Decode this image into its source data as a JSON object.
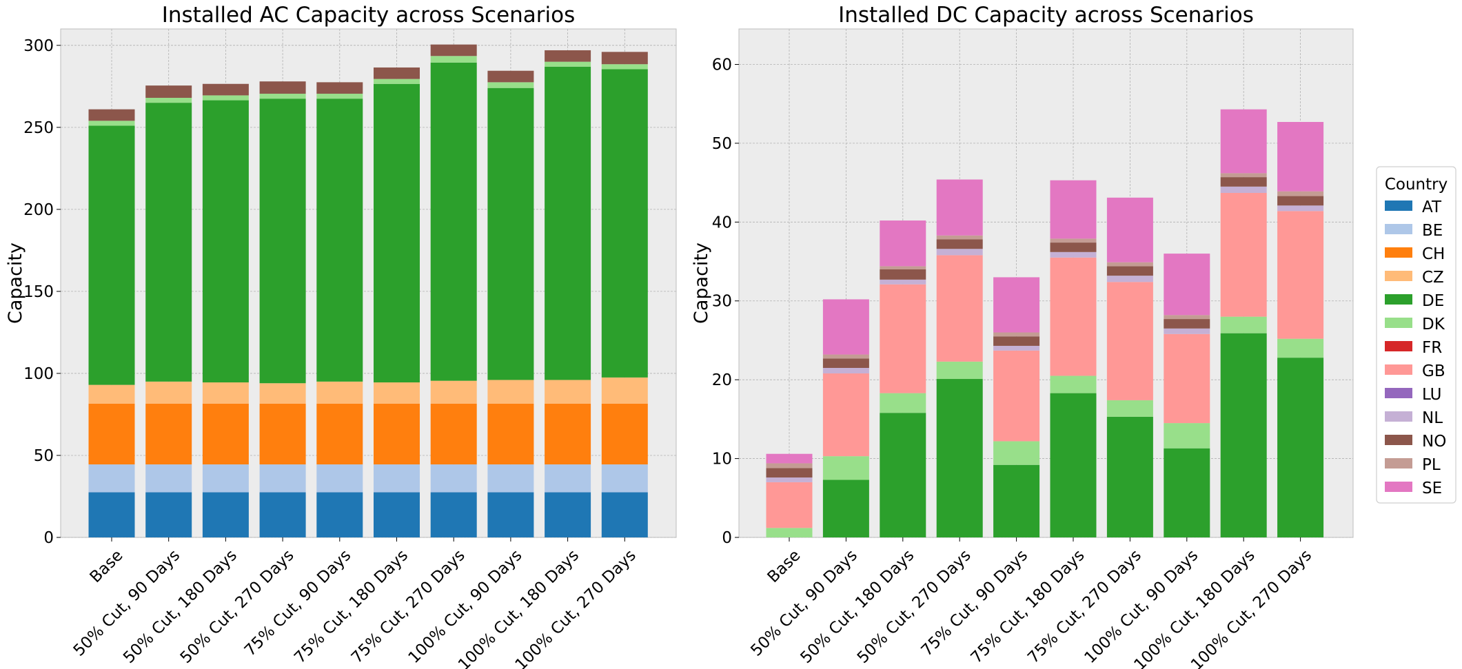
{
  "countries": [
    {
      "name": "AT",
      "color": "#1f77b4"
    },
    {
      "name": "BE",
      "color": "#aec7e8"
    },
    {
      "name": "CH",
      "color": "#ff7f0e"
    },
    {
      "name": "CZ",
      "color": "#ffbb78"
    },
    {
      "name": "DE",
      "color": "#2ca02c"
    },
    {
      "name": "DK",
      "color": "#98df8a"
    },
    {
      "name": "FR",
      "color": "#d62728"
    },
    {
      "name": "GB",
      "color": "#ff9896"
    },
    {
      "name": "LU",
      "color": "#9467bd"
    },
    {
      "name": "NL",
      "color": "#c5b0d5"
    },
    {
      "name": "NO",
      "color": "#8c564b"
    },
    {
      "name": "PL",
      "color": "#c49c94"
    },
    {
      "name": "SE",
      "color": "#e377c2"
    }
  ],
  "legend": {
    "title": "Country",
    "placement": "right, outside"
  },
  "chart_data": [
    {
      "type": "bar",
      "stacked": true,
      "title": "Installed AC Capacity across Scenarios",
      "xlabel": "",
      "ylabel": "Capacity",
      "ylim": [
        0,
        310
      ],
      "yticks": [
        0,
        50,
        100,
        150,
        200,
        250,
        300
      ],
      "grid": true,
      "categories": [
        "Base",
        "50% Cut, 90 Days",
        "50% Cut, 180 Days",
        "50% Cut, 270 Days",
        "75% Cut, 90 Days",
        "75% Cut, 180 Days",
        "75% Cut, 270 Days",
        "100% Cut, 90 Days",
        "100% Cut, 180 Days",
        "100% Cut, 270 Days"
      ],
      "series": [
        {
          "name": "AT",
          "values": [
            27.5,
            27.5,
            27.5,
            27.5,
            27.5,
            27.5,
            27.5,
            27.5,
            27.5,
            27.5
          ]
        },
        {
          "name": "BE",
          "values": [
            17,
            17,
            17,
            17,
            17,
            17,
            17,
            17,
            17,
            17
          ]
        },
        {
          "name": "CH",
          "values": [
            37,
            37,
            37,
            37,
            37,
            37,
            37,
            37,
            37,
            37
          ]
        },
        {
          "name": "CZ",
          "values": [
            11.5,
            13.5,
            13,
            12.5,
            13.5,
            13,
            14,
            14.5,
            14.5,
            16
          ]
        },
        {
          "name": "DE",
          "values": [
            158,
            170,
            172,
            173.5,
            172.5,
            182,
            194,
            178,
            191,
            188
          ]
        },
        {
          "name": "DK",
          "values": [
            3,
            3,
            3,
            3,
            3,
            3,
            4,
            3.5,
            3,
            3
          ]
        },
        {
          "name": "FR",
          "values": [
            0,
            0,
            0,
            0,
            0,
            0,
            0,
            0,
            0,
            0
          ]
        },
        {
          "name": "GB",
          "values": [
            0,
            0,
            0,
            0,
            0,
            0,
            0,
            0,
            0,
            0
          ]
        },
        {
          "name": "LU",
          "values": [
            0,
            0,
            0,
            0,
            0,
            0,
            0,
            0,
            0,
            0
          ]
        },
        {
          "name": "NL",
          "values": [
            0,
            0,
            0,
            0,
            0,
            0,
            0,
            0,
            0,
            0
          ]
        },
        {
          "name": "NO",
          "values": [
            7,
            7.5,
            7,
            7.5,
            7,
            7,
            7,
            7,
            7,
            7.5
          ]
        },
        {
          "name": "PL",
          "values": [
            0,
            0,
            0,
            0,
            0,
            0,
            0,
            0,
            0,
            0
          ]
        },
        {
          "name": "SE",
          "values": [
            0,
            0,
            0,
            0,
            0,
            0,
            0,
            0,
            0,
            0
          ]
        }
      ]
    },
    {
      "type": "bar",
      "stacked": true,
      "title": "Installed DC Capacity across Scenarios",
      "xlabel": "",
      "ylabel": "Capacity",
      "ylim": [
        0,
        64.5
      ],
      "yticks": [
        0,
        10,
        20,
        30,
        40,
        50,
        60
      ],
      "grid": true,
      "categories": [
        "Base",
        "50% Cut, 90 Days",
        "50% Cut, 180 Days",
        "50% Cut, 270 Days",
        "75% Cut, 90 Days",
        "75% Cut, 180 Days",
        "75% Cut, 270 Days",
        "100% Cut, 90 Days",
        "100% Cut, 180 Days",
        "100% Cut, 270 Days"
      ],
      "series": [
        {
          "name": "AT",
          "values": [
            0,
            0,
            0,
            0,
            0,
            0,
            0,
            0,
            0,
            0
          ]
        },
        {
          "name": "BE",
          "values": [
            0,
            0,
            0,
            0,
            0,
            0,
            0,
            0,
            0,
            0
          ]
        },
        {
          "name": "CH",
          "values": [
            0,
            0,
            0,
            0,
            0,
            0,
            0,
            0,
            0,
            0
          ]
        },
        {
          "name": "CZ",
          "values": [
            0,
            0,
            0,
            0,
            0,
            0,
            0,
            0,
            0,
            0
          ]
        },
        {
          "name": "DE",
          "values": [
            0,
            7.3,
            15.8,
            20.1,
            9.2,
            18.3,
            15.3,
            11.3,
            25.9,
            22.8
          ]
        },
        {
          "name": "DK",
          "values": [
            1.2,
            3.0,
            2.5,
            2.2,
            3.0,
            2.2,
            2.1,
            3.2,
            2.1,
            2.4
          ]
        },
        {
          "name": "FR",
          "values": [
            0,
            0,
            0,
            0,
            0,
            0,
            0,
            0,
            0,
            0
          ]
        },
        {
          "name": "GB",
          "values": [
            5.8,
            10.5,
            13.8,
            13.5,
            11.5,
            15.0,
            15.0,
            11.3,
            15.7,
            16.2
          ]
        },
        {
          "name": "LU",
          "values": [
            0,
            0,
            0,
            0,
            0,
            0,
            0,
            0,
            0,
            0
          ]
        },
        {
          "name": "NL",
          "values": [
            0.6,
            0.7,
            0.6,
            0.8,
            0.6,
            0.7,
            0.8,
            0.7,
            0.8,
            0.7
          ]
        },
        {
          "name": "NO",
          "values": [
            1.2,
            1.2,
            1.3,
            1.2,
            1.2,
            1.2,
            1.2,
            1.2,
            1.2,
            1.2
          ]
        },
        {
          "name": "PL",
          "values": [
            0.6,
            0.5,
            0.4,
            0.5,
            0.5,
            0.5,
            0.5,
            0.5,
            0.5,
            0.6
          ]
        },
        {
          "name": "SE",
          "values": [
            1.2,
            7.0,
            5.8,
            7.1,
            7.0,
            7.4,
            8.2,
            7.8,
            8.1,
            8.8
          ]
        }
      ]
    }
  ]
}
